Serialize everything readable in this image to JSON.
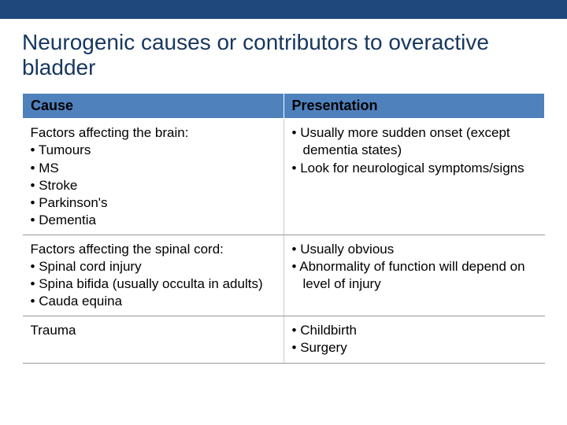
{
  "slide": {
    "title": "Neurogenic causes or contributors to overactive bladder",
    "top_bar_color": "#1f497d",
    "title_color": "#17375e",
    "header_bg": "#4f81bd",
    "header_text_color": "#000000",
    "cell_bg": "#ffffff",
    "cell_text_color": "#000000",
    "border_color": "#999999"
  },
  "table": {
    "columns": [
      "Cause",
      "Presentation"
    ],
    "rows": [
      {
        "cause_lead": "Factors affecting the brain:",
        "cause_items": [
          "Tumours",
          "MS",
          "Stroke",
          "Parkinson's",
          "Dementia"
        ],
        "presentation_lead": "",
        "presentation_items": [
          "Usually more sudden onset (except dementia states)",
          "Look for neurological symptoms/signs"
        ]
      },
      {
        "cause_lead": "Factors affecting the spinal cord:",
        "cause_items": [
          "Spinal cord injury",
          "Spina bifida (usually occulta in adults)",
          "Cauda equina"
        ],
        "presentation_lead": "",
        "presentation_items": [
          "Usually obvious",
          "Abnormality of function will depend on level of injury"
        ]
      },
      {
        "cause_lead": "Trauma",
        "cause_items": [],
        "presentation_lead": "",
        "presentation_items": [
          "Childbirth",
          "Surgery"
        ]
      }
    ]
  }
}
